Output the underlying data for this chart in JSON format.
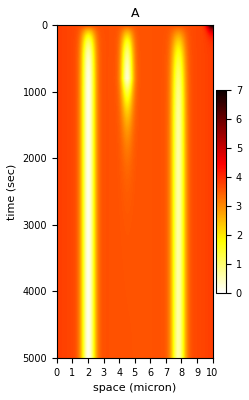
{
  "title": "A",
  "xlabel": "space (micron)",
  "ylabel": "time (sec)",
  "x_range": [
    0,
    10
  ],
  "y_range": [
    0,
    5000
  ],
  "cbar_range": [
    0,
    7
  ],
  "cbar_ticks": [
    0,
    1,
    2,
    3,
    4,
    5,
    6,
    7
  ],
  "x_ticks": [
    0,
    1,
    2,
    3,
    4,
    5,
    6,
    7,
    8,
    9,
    10
  ],
  "y_ticks": [
    0,
    1000,
    2000,
    3000,
    4000,
    5000
  ],
  "nx": 200,
  "nt": 400,
  "colormap": "hot_r",
  "figsize": [
    2.49,
    4.0
  ],
  "dpi": 100
}
